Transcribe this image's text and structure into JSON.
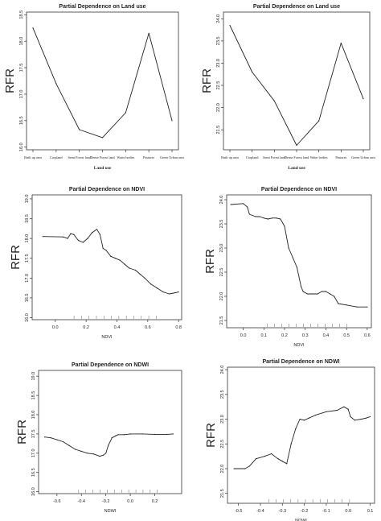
{
  "chart_data": [
    {
      "type": "line",
      "title": "Partial Dependence on Land use",
      "xlabel": "Land use",
      "ylabel": "RFR",
      "categories": [
        "Built up area",
        "Cropland",
        "Semi Forest land",
        "Dense Forest land",
        "Water bodies",
        "Pastures",
        "Green Urban area"
      ],
      "values": [
        18.25,
        17.2,
        16.33,
        16.18,
        16.65,
        18.15,
        16.5
      ],
      "ylim": [
        15.95,
        18.55
      ],
      "yticks": [
        "16.0",
        "16.5",
        "17.0",
        "17.5",
        "18.0",
        "18.5"
      ],
      "grid": false
    },
    {
      "type": "line",
      "title": "Partial Dependence on Land use",
      "xlabel": "Land use",
      "ylabel": "RFR",
      "categories": [
        "Built up area",
        "Cropland",
        "Semi Forest land",
        "Dense Forest land",
        "Water bodies",
        "Pastures",
        "Green Urban area"
      ],
      "values": [
        23.85,
        22.8,
        22.15,
        21.15,
        21.7,
        23.45,
        22.2
      ],
      "ylim": [
        21.05,
        24.15
      ],
      "yticks": [
        "21.5",
        "22.0",
        "22.5",
        "23.0",
        "23.5",
        "24.0"
      ],
      "grid": false
    },
    {
      "type": "line",
      "title": "Partial Dependence on NDVI",
      "xlabel": "NDVI",
      "ylabel": "RFR",
      "x": [
        -0.08,
        0.05,
        0.08,
        0.1,
        0.12,
        0.15,
        0.18,
        0.21,
        0.24,
        0.27,
        0.29,
        0.31,
        0.33,
        0.36,
        0.39,
        0.42,
        0.45,
        0.48,
        0.52,
        0.55,
        0.58,
        0.62,
        0.66,
        0.7,
        0.74,
        0.78,
        0.8
      ],
      "y": [
        18.05,
        18.04,
        18.0,
        18.12,
        18.1,
        17.95,
        17.9,
        18.0,
        18.15,
        18.23,
        18.1,
        17.75,
        17.7,
        17.55,
        17.5,
        17.45,
        17.35,
        17.25,
        17.2,
        17.1,
        17.0,
        16.85,
        16.75,
        16.65,
        16.6,
        16.63,
        16.65
      ],
      "xlim": [
        -0.15,
        0.82
      ],
      "ylim": [
        15.95,
        19.1
      ],
      "xticks": [
        "0.0",
        "0.2",
        "0.4",
        "0.6",
        "0.8"
      ],
      "yticks": [
        "16.0",
        "16.5",
        "17.0",
        "17.5",
        "18.0",
        "18.5",
        "19.0"
      ],
      "grid": false
    },
    {
      "type": "line",
      "title": "Partial Dependence on NDVI",
      "xlabel": "NDVI",
      "ylabel": "RFR",
      "x": [
        -0.06,
        0.0,
        0.02,
        0.03,
        0.06,
        0.08,
        0.1,
        0.12,
        0.14,
        0.16,
        0.18,
        0.2,
        0.22,
        0.24,
        0.26,
        0.28,
        0.29,
        0.31,
        0.33,
        0.36,
        0.38,
        0.4,
        0.42,
        0.44,
        0.46,
        0.5,
        0.55,
        0.6
      ],
      "y": [
        23.9,
        23.92,
        23.85,
        23.7,
        23.65,
        23.65,
        23.62,
        23.6,
        23.62,
        23.62,
        23.6,
        23.45,
        23.0,
        22.8,
        22.6,
        22.2,
        22.1,
        22.05,
        22.05,
        22.05,
        22.1,
        22.1,
        22.05,
        22.0,
        21.85,
        21.82,
        21.78,
        21.78
      ],
      "xlim": [
        -0.08,
        0.62
      ],
      "ylim": [
        21.35,
        24.1
      ],
      "xticks": [
        "0.0",
        "0.1",
        "0.2",
        "0.3",
        "0.4",
        "0.5",
        "0.6"
      ],
      "yticks": [
        "21.5",
        "22.0",
        "22.5",
        "23.0",
        "23.5",
        "24.0"
      ],
      "grid": false
    },
    {
      "type": "line",
      "title": "Partial Dependence on NDWI",
      "xlabel": "NDWI",
      "ylabel": "RFR",
      "x": [
        -0.7,
        -0.65,
        -0.6,
        -0.55,
        -0.5,
        -0.45,
        -0.4,
        -0.35,
        -0.3,
        -0.25,
        -0.22,
        -0.2,
        -0.18,
        -0.15,
        -0.12,
        -0.1,
        -0.05,
        0.0,
        0.1,
        0.2,
        0.3,
        0.35
      ],
      "y": [
        17.42,
        17.4,
        17.35,
        17.3,
        17.2,
        17.1,
        17.05,
        17.0,
        16.98,
        16.92,
        16.95,
        17.0,
        17.2,
        17.4,
        17.45,
        17.48,
        17.48,
        17.5,
        17.5,
        17.49,
        17.49,
        17.5
      ],
      "xlim": [
        -0.75,
        0.42
      ],
      "ylim": [
        15.95,
        19.15
      ],
      "xticks": [
        "-0.6",
        "-0.4",
        "-0.2",
        "0.0",
        "0.2"
      ],
      "yticks": [
        "16.0",
        "16.5",
        "17.0",
        "17.5",
        "18.0",
        "18.5",
        "19.0"
      ],
      "grid": false
    },
    {
      "type": "line",
      "title": "Partial Dependence on NDWI",
      "xlabel": "NDWI",
      "ylabel": "RFR",
      "x": [
        -0.52,
        -0.47,
        -0.45,
        -0.42,
        -0.38,
        -0.35,
        -0.32,
        -0.3,
        -0.28,
        -0.26,
        -0.24,
        -0.22,
        -0.2,
        -0.18,
        -0.15,
        -0.1,
        -0.05,
        -0.02,
        0.0,
        0.01,
        0.03,
        0.06,
        0.08,
        0.1
      ],
      "y": [
        22.0,
        22.0,
        22.05,
        22.2,
        22.25,
        22.3,
        22.2,
        22.15,
        22.1,
        22.5,
        22.8,
        23.0,
        22.98,
        23.02,
        23.08,
        23.15,
        23.18,
        23.25,
        23.2,
        23.05,
        22.98,
        23.0,
        23.02,
        23.05
      ],
      "xlim": [
        -0.55,
        0.12
      ],
      "ylim": [
        21.3,
        24.05
      ],
      "xticks": [
        "-0.5",
        "-0.4",
        "-0.3",
        "-0.2",
        "-0.1",
        "0.0",
        "0.1"
      ],
      "yticks": [
        "21.5",
        "22.0",
        "22.5",
        "23.0",
        "23.5",
        "24.0"
      ],
      "grid": false
    }
  ]
}
